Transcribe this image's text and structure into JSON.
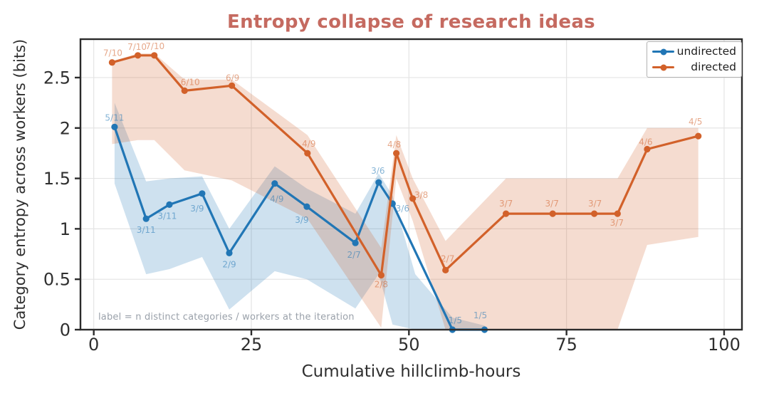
{
  "title": {
    "text": "Entropy collapse of research ideas",
    "color": "#c56a60"
  },
  "axes": {
    "xlabel": "Cumulative hillclimb-hours",
    "ylabel": "Category entropy across workers (bits)",
    "text_color": "#2f2f2f",
    "grid_color": "#e4e4e4",
    "spine_color": "#2b2b2b"
  },
  "annotation": {
    "text": "label = n distinct categories / workers at the iteration",
    "color": "#9aa1aa"
  },
  "legend": {
    "position": "upper right",
    "items": [
      {
        "label": "undirected",
        "color": "#2176b5"
      },
      {
        "label": "directed",
        "color": "#d2612a"
      }
    ]
  },
  "chart_data": {
    "type": "line",
    "title": "Entropy collapse of research ideas",
    "xlabel": "Cumulative hillclimb-hours",
    "ylabel": "Category entropy across workers (bits)",
    "xlim": [
      -2.11,
      102.83
    ],
    "ylim": [
      0,
      2.881
    ],
    "grid": true,
    "legend_position": "upper right",
    "xticks": [
      {
        "value": 0,
        "label": "0"
      },
      {
        "value": 25,
        "label": "25"
      },
      {
        "value": 50,
        "label": "50"
      },
      {
        "value": 75,
        "label": "75"
      },
      {
        "value": 100,
        "label": "100"
      }
    ],
    "yticks": [
      {
        "value": 0,
        "label": "0"
      },
      {
        "value": 0.5,
        "label": "0.5"
      },
      {
        "value": 1,
        "label": "1"
      },
      {
        "value": 1.5,
        "label": "1.5"
      },
      {
        "value": 2,
        "label": "2"
      },
      {
        "value": 2.5,
        "label": "2.5"
      }
    ],
    "series": [
      {
        "name": "undirected",
        "color": "#2176b5",
        "band_opacity": 0.22,
        "label_opacity": 0.55,
        "points": [
          {
            "x": 3.3,
            "y": 2.01,
            "label": "5/11",
            "label_offset": [
              0,
              -13
            ]
          },
          {
            "x": 8.3,
            "y": 1.1,
            "label": "3/11",
            "label_offset": [
              0,
              16
            ]
          },
          {
            "x": 12.0,
            "y": 1.24,
            "label": "3/11",
            "label_offset": [
              -3,
              16
            ]
          },
          {
            "x": 17.2,
            "y": 1.35,
            "label": "3/9",
            "label_offset": [
              -7,
              21
            ]
          },
          {
            "x": 21.5,
            "y": 0.76,
            "label": "2/9",
            "label_offset": [
              0,
              16
            ]
          },
          {
            "x": 28.7,
            "y": 1.45,
            "label": "4/9",
            "label_offset": [
              3,
              22
            ]
          },
          {
            "x": 33.8,
            "y": 1.22,
            "label": "3/9",
            "label_offset": [
              -7,
              19
            ]
          },
          {
            "x": 41.5,
            "y": 0.86,
            "label": "2/7",
            "label_offset": [
              -2,
              17
            ]
          },
          {
            "x": 45.2,
            "y": 1.46,
            "label": "3/6",
            "label_offset": [
              -1,
              -16
            ]
          },
          {
            "x": 47.4,
            "y": 1.25,
            "label": "3/6",
            "label_offset": [
              14,
              7
            ]
          },
          {
            "x": 56.9,
            "y": 0.0,
            "label": "1/5",
            "label_offset": [
              4,
              -13
            ]
          },
          {
            "x": 62.0,
            "y": 0.0,
            "label": "1/5",
            "label_offset": [
              -6,
              -20
            ]
          }
        ],
        "band": [
          [
            3.3,
            1.45,
            2.25
          ],
          [
            8.3,
            0.55,
            1.47
          ],
          [
            12.0,
            0.6,
            1.5
          ],
          [
            17.2,
            0.72,
            1.52
          ],
          [
            21.5,
            0.2,
            1.0
          ],
          [
            28.7,
            0.58,
            1.62
          ],
          [
            33.8,
            0.5,
            1.4
          ],
          [
            41.5,
            0.21,
            1.15
          ],
          [
            45.2,
            0.55,
            1.55
          ],
          [
            47.4,
            0.05,
            1.33
          ],
          [
            51.0,
            0.0,
            0.55
          ],
          [
            56.9,
            0.0,
            0.12
          ],
          [
            62.0,
            0.0,
            0.04
          ]
        ]
      },
      {
        "name": "directed",
        "color": "#d2612a",
        "band_opacity": 0.22,
        "label_opacity": 0.55,
        "points": [
          {
            "x": 2.9,
            "y": 2.65,
            "label": "7/10",
            "label_offset": [
              1,
              -13
            ]
          },
          {
            "x": 7.0,
            "y": 2.72,
            "label": "7/10",
            "label_offset": [
              -1,
              -12
            ]
          },
          {
            "x": 9.6,
            "y": 2.72,
            "label": "7/10",
            "label_offset": [
              1,
              -13
            ]
          },
          {
            "x": 14.4,
            "y": 2.37,
            "label": "6/10",
            "label_offset": [
              8,
              -12
            ]
          },
          {
            "x": 21.9,
            "y": 2.42,
            "label": "6/9",
            "label_offset": [
              1,
              -11
            ]
          },
          {
            "x": 33.9,
            "y": 1.75,
            "label": "4/9",
            "label_offset": [
              2,
              -13
            ]
          },
          {
            "x": 45.6,
            "y": 0.54,
            "label": "2/8",
            "label_offset": [
              0,
              13
            ]
          },
          {
            "x": 48.0,
            "y": 1.75,
            "label": "4/8",
            "label_offset": [
              -3,
              -12
            ]
          },
          {
            "x": 50.6,
            "y": 1.3,
            "label": "3/8",
            "label_offset": [
              12,
              -5
            ]
          },
          {
            "x": 55.8,
            "y": 0.59,
            "label": "2/7",
            "label_offset": [
              3,
              -16
            ]
          },
          {
            "x": 65.4,
            "y": 1.15,
            "label": "3/7",
            "label_offset": [
              0,
              -14
            ]
          },
          {
            "x": 72.8,
            "y": 1.15,
            "label": "3/7",
            "label_offset": [
              -1,
              -14
            ]
          },
          {
            "x": 79.4,
            "y": 1.15,
            "label": "3/7",
            "label_offset": [
              1,
              -14
            ]
          },
          {
            "x": 83.1,
            "y": 1.15,
            "label": "3/7",
            "label_offset": [
              -1,
              13
            ]
          },
          {
            "x": 87.8,
            "y": 1.79,
            "label": "4/6",
            "label_offset": [
              -2,
              -10
            ]
          },
          {
            "x": 95.9,
            "y": 1.92,
            "label": "4/5",
            "label_offset": [
              -4,
              -20
            ]
          }
        ],
        "band": [
          [
            2.9,
            1.84,
            2.66
          ],
          [
            7.0,
            1.88,
            2.74
          ],
          [
            9.6,
            1.88,
            2.74
          ],
          [
            14.4,
            1.58,
            2.48
          ],
          [
            21.9,
            1.48,
            2.48
          ],
          [
            33.9,
            1.1,
            1.93
          ],
          [
            45.6,
            0.02,
            0.81
          ],
          [
            48.0,
            1.5,
            1.93
          ],
          [
            50.6,
            1.08,
            1.5
          ],
          [
            55.8,
            0.0,
            0.88
          ],
          [
            65.4,
            0.0,
            1.5
          ],
          [
            72.8,
            0.0,
            1.5
          ],
          [
            79.4,
            0.0,
            1.5
          ],
          [
            83.1,
            0.0,
            1.5
          ],
          [
            87.8,
            0.84,
            2.0
          ],
          [
            95.9,
            0.92,
            2.0
          ]
        ]
      }
    ]
  }
}
